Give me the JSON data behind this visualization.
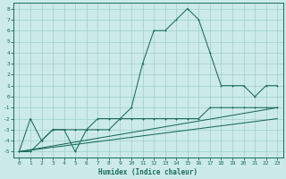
{
  "xlabel": "Humidex (Indice chaleur)",
  "bg_color": "#cceae8",
  "grid_color": "#9dcfcb",
  "line_color": "#1a6b5a",
  "xlim": [
    -0.5,
    23.5
  ],
  "ylim": [
    -5.5,
    8.5
  ],
  "xticks": [
    0,
    1,
    2,
    3,
    4,
    5,
    6,
    7,
    8,
    9,
    10,
    11,
    12,
    13,
    14,
    15,
    16,
    17,
    18,
    19,
    20,
    21,
    22,
    23
  ],
  "yticks": [
    -5,
    -4,
    -3,
    -2,
    -1,
    0,
    1,
    2,
    3,
    4,
    5,
    6,
    7,
    8
  ],
  "main_x": [
    0,
    1,
    2,
    3,
    4,
    5,
    6,
    7,
    8,
    9,
    10,
    11,
    12,
    13,
    14,
    15,
    16,
    17,
    18,
    19,
    20,
    21,
    22,
    23
  ],
  "main_y": [
    -5,
    -2,
    -4,
    -3,
    -3,
    -5,
    -3,
    -2,
    -2,
    -2,
    -1,
    3,
    6,
    6,
    7,
    8,
    7,
    4,
    1,
    1,
    1,
    0,
    1,
    1
  ],
  "line2_x": [
    0,
    1,
    2,
    3,
    4,
    5,
    6,
    7,
    8,
    9,
    10,
    11,
    12,
    13,
    14,
    15,
    16,
    17,
    18,
    19,
    20,
    21,
    22,
    23
  ],
  "line2_y": [
    -5,
    -5,
    -4,
    -3,
    -3,
    -3,
    -3,
    -3,
    -3,
    -2,
    -2,
    -2,
    -2,
    -2,
    -2,
    -2,
    -2,
    -1,
    -1,
    -1,
    -1,
    -1,
    -1,
    -1
  ],
  "line3_x": [
    0,
    23
  ],
  "line3_y": [
    -5,
    -1
  ],
  "line4_x": [
    0,
    23
  ],
  "line4_y": [
    -5,
    -2
  ]
}
